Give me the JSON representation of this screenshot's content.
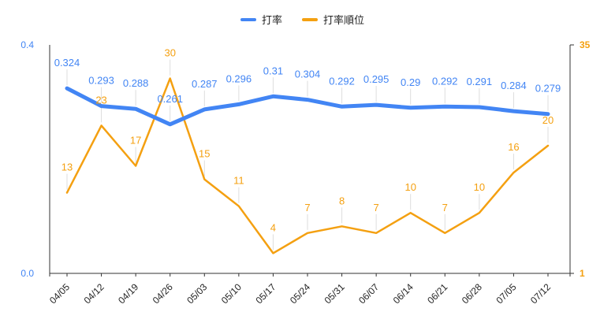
{
  "chart_data": {
    "type": "line",
    "title": "",
    "xlabel": "",
    "categories": [
      "04/05",
      "04/12",
      "04/19",
      "04/26",
      "05/03",
      "05/10",
      "05/17",
      "05/24",
      "05/31",
      "06/07",
      "06/14",
      "06/21",
      "06/28",
      "07/05",
      "07/12"
    ],
    "series": [
      {
        "name": "打率",
        "axis": "left",
        "color": "#4285f4",
        "values": [
          0.324,
          0.293,
          0.288,
          0.261,
          0.287,
          0.296,
          0.31,
          0.304,
          0.292,
          0.295,
          0.29,
          0.292,
          0.291,
          0.284,
          0.279
        ],
        "labels": [
          "0.324",
          "0.293",
          "0.288",
          "0.261",
          "0.287",
          "0.296",
          "0.31",
          "0.304",
          "0.292",
          "0.295",
          "0.29",
          "0.292",
          "0.291",
          "0.284",
          "0.279"
        ]
      },
      {
        "name": "打率順位",
        "axis": "right",
        "color": "#f4a011",
        "values": [
          13,
          23,
          17,
          30,
          15,
          11,
          4,
          7,
          8,
          7,
          10,
          7,
          10,
          16,
          20
        ],
        "labels": [
          "13",
          "23",
          "17",
          "30",
          "15",
          "11",
          "4",
          "7",
          "8",
          "7",
          "10",
          "7",
          "10",
          "16",
          "20"
        ]
      }
    ],
    "y_left": {
      "min": 0,
      "max": 0.4,
      "ticks": [
        "0.0",
        "0.4"
      ],
      "color": "#4285f4"
    },
    "y_right": {
      "min": 1,
      "max": 35,
      "ticks": [
        "1",
        "35"
      ],
      "color": "#f4a011"
    },
    "legend": "top-center",
    "grid": false
  }
}
